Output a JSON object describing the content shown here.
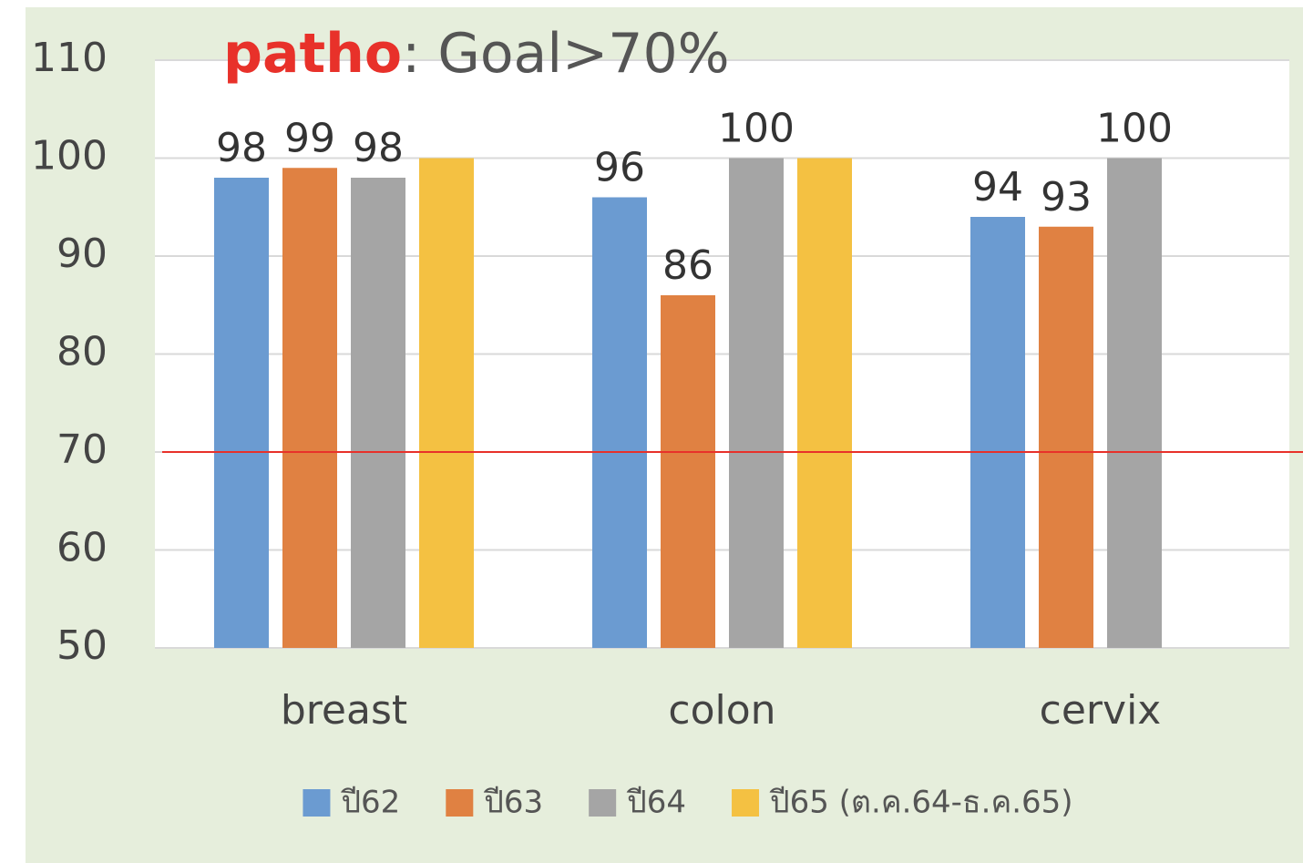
{
  "chart_data": {
    "type": "bar",
    "title_parts": [
      {
        "text": "patho",
        "color": "#e8312a",
        "bold": true
      },
      {
        "text": ": Goal>70%",
        "color": "#555555",
        "bold": false
      }
    ],
    "categories": [
      "breast",
      "colon",
      "cervix"
    ],
    "series": [
      {
        "name": "ปี62",
        "color": "#6b9bd1",
        "values": [
          98,
          96,
          94
        ],
        "show_labels": true
      },
      {
        "name": "ปี63",
        "color": "#e08142",
        "values": [
          99,
          86,
          93
        ],
        "show_labels": true
      },
      {
        "name": "ปี64",
        "color": "#a5a5a5",
        "values": [
          98,
          100,
          100
        ],
        "show_labels": true
      },
      {
        "name": "ปี65 (ต.ค.64-ธ.ค.65)",
        "color": "#f4c142",
        "values": [
          100,
          100,
          null
        ],
        "show_labels": false
      }
    ],
    "ylim": [
      50,
      110
    ],
    "yticks": [
      50,
      60,
      70,
      80,
      90,
      100,
      110
    ],
    "grid": true,
    "reference_line": {
      "value": 70,
      "color": "#e8312a"
    },
    "legend": "bottom"
  }
}
